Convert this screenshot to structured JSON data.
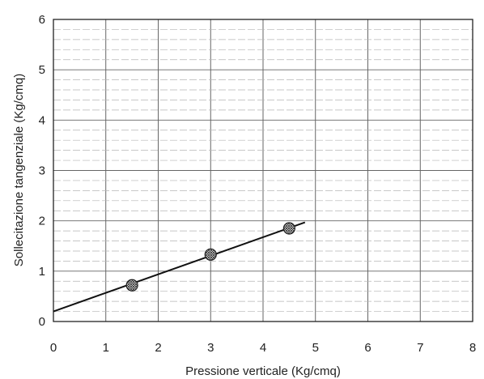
{
  "chart_data": {
    "type": "scatter",
    "xlabel": "Pressione verticale (Kg/cmq)",
    "ylabel": "Sollecitazione tangenziale (Kg/cmq)",
    "xlim": [
      0,
      8
    ],
    "ylim": [
      0,
      6
    ],
    "x_ticks": [
      "0",
      "1",
      "2",
      "3",
      "4",
      "5",
      "6",
      "7",
      "8"
    ],
    "y_ticks": [
      "0",
      "1",
      "2",
      "3",
      "4",
      "5",
      "6"
    ],
    "grid": true,
    "minor_y_gridlines_per_unit": 5,
    "series": [
      {
        "type": "scatter",
        "marker": "hatched-circle",
        "points": [
          {
            "x": 1.5,
            "y": 0.72
          },
          {
            "x": 3.0,
            "y": 1.33
          },
          {
            "x": 4.5,
            "y": 1.85
          }
        ]
      },
      {
        "type": "line",
        "points": [
          {
            "x": 0.0,
            "y": 0.2
          },
          {
            "x": 4.8,
            "y": 1.97
          }
        ]
      }
    ]
  }
}
